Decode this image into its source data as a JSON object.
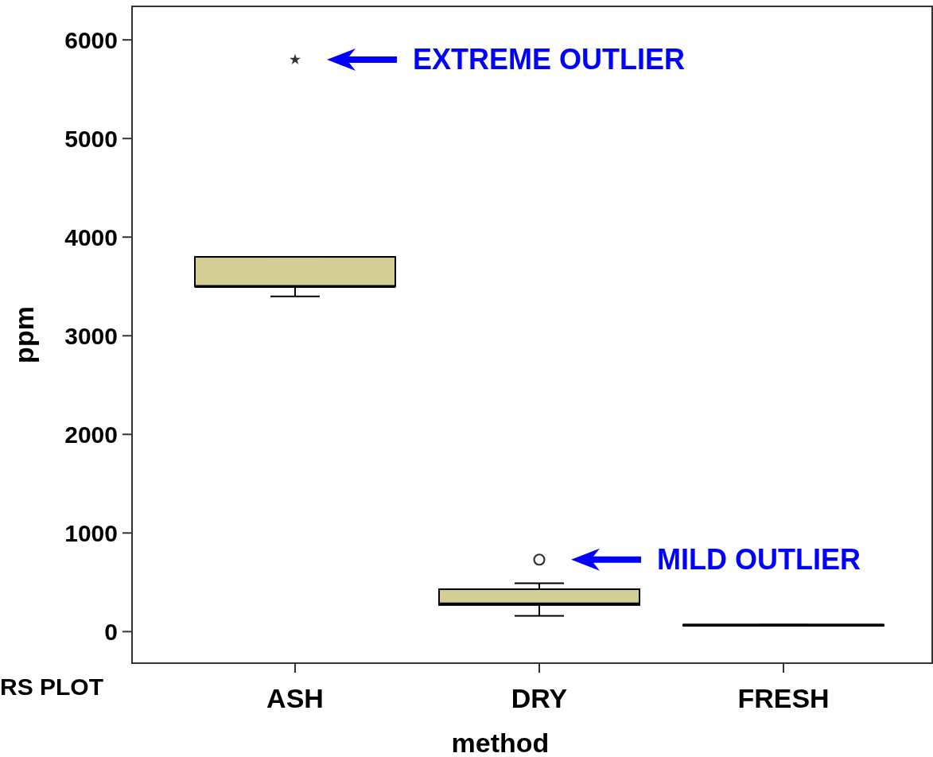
{
  "chart_data": {
    "type": "box",
    "xlabel": "method",
    "ylabel": "ppm",
    "categories": [
      "ASH",
      "DRY",
      "FRESH"
    ],
    "ylim": [
      -320,
      6340
    ],
    "yticks": [
      0,
      1000,
      2000,
      3000,
      4000,
      5000,
      6000
    ],
    "grid": false,
    "color": "#d3cd96",
    "boxes": [
      {
        "low": 3400,
        "q1": 3500,
        "median": 3500,
        "q3": 3800,
        "high": 3800
      },
      {
        "low": 160,
        "q1": 270,
        "median": 280,
        "q3": 430,
        "high": 490
      },
      {
        "low": 60,
        "q1": 60,
        "median": 65,
        "q3": 70,
        "high": 70
      }
    ],
    "series": [
      {
        "type": "scatter",
        "x": [
          "ASH"
        ],
        "values": [
          5800
        ],
        "marker": "star",
        "color": "#333333"
      },
      {
        "type": "scatter",
        "x": [
          "DRY"
        ],
        "values": [
          730
        ],
        "marker": "circle",
        "color": "#333333"
      }
    ],
    "annotations": [
      "EXTREME OUTLIER",
      "MILD OUTLIER",
      "RS PLOT"
    ]
  }
}
